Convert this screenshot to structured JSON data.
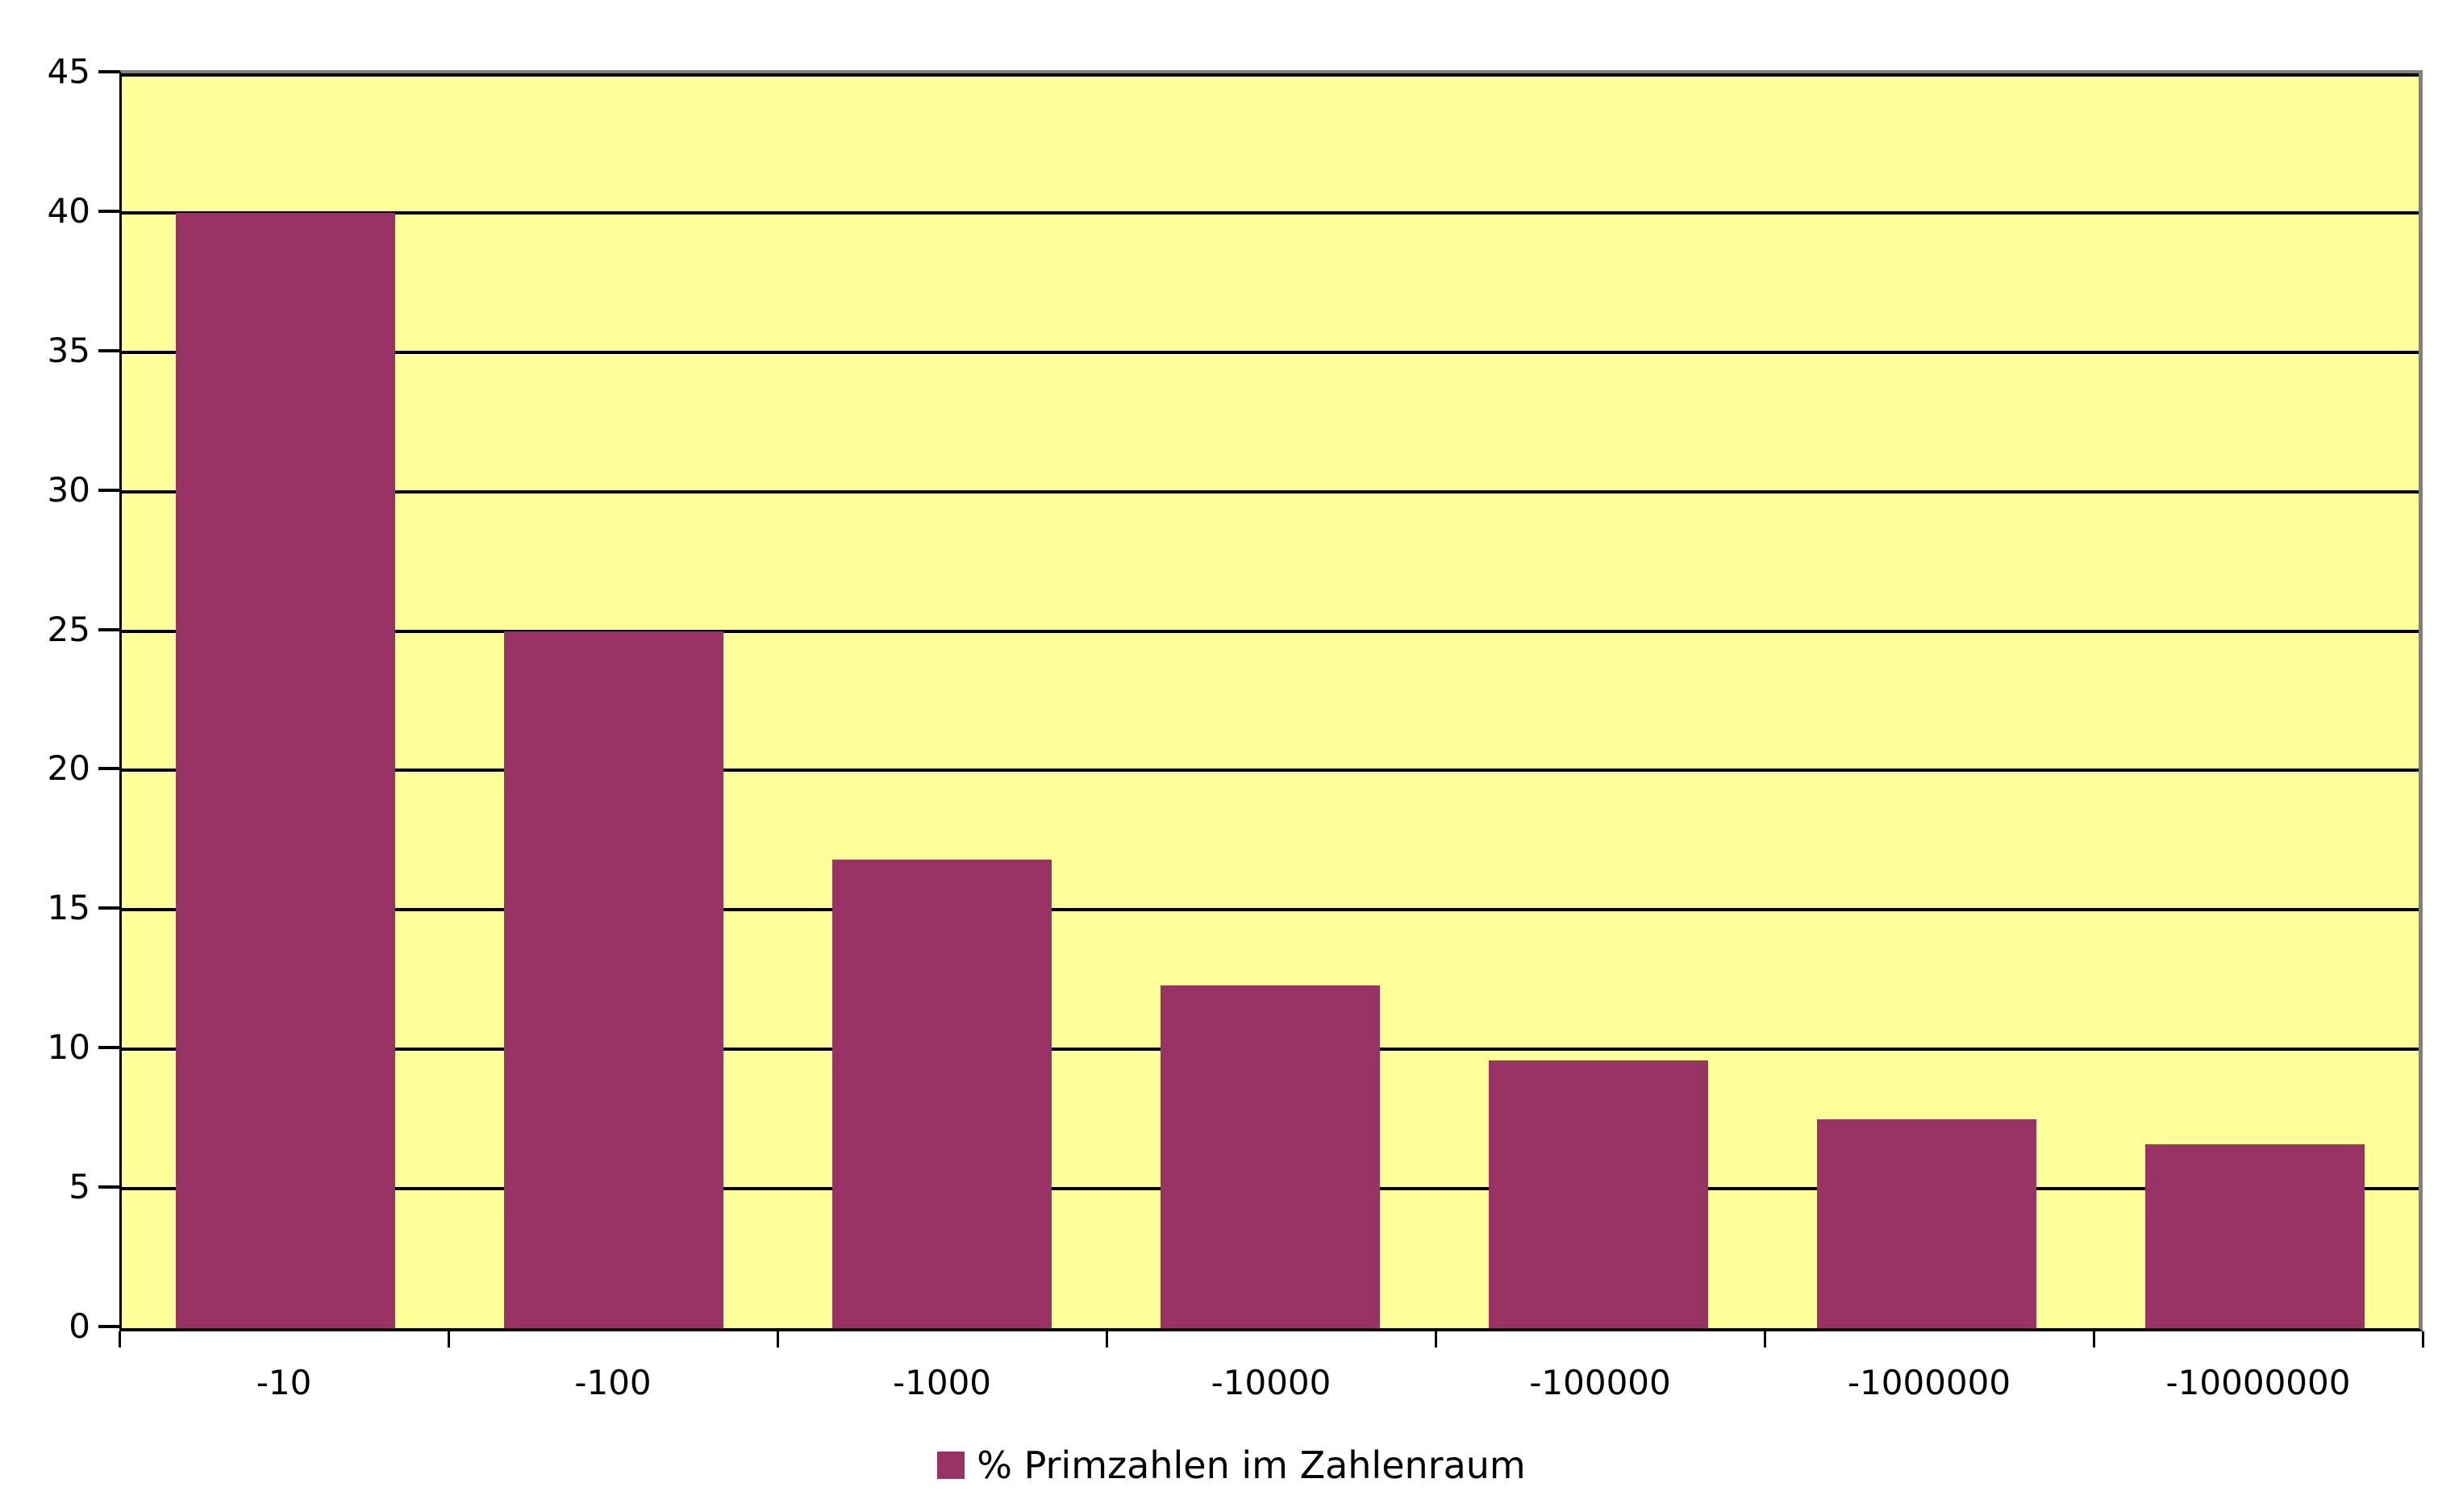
{
  "chart_data": {
    "type": "bar",
    "title": "",
    "categories": [
      "-10",
      "-100",
      "-1000",
      "-10000",
      "-100000",
      "-1000000",
      "-10000000"
    ],
    "series": [
      {
        "name": "% Primzahlen im Zahlenraum",
        "values": [
          40,
          25,
          16.8,
          12.3,
          9.6,
          7.5,
          6.6
        ]
      }
    ],
    "xlabel": "",
    "ylabel": "",
    "ylim": [
      0,
      45
    ],
    "yticks": [
      0,
      5,
      10,
      15,
      20,
      25,
      30,
      35,
      40,
      45
    ],
    "grid": "horizontal-black",
    "legend_position": "bottom-center",
    "colors": {
      "bar": "#993366",
      "plot_background": "#FFFF99",
      "page_background": "#FFFFFF",
      "gridline": "#000000",
      "plot_border": "#808080",
      "axis": "#000000",
      "text": "#000000"
    }
  },
  "legend": {
    "label": "% Primzahlen im Zahlenraum",
    "swatch_color": "#993366"
  }
}
